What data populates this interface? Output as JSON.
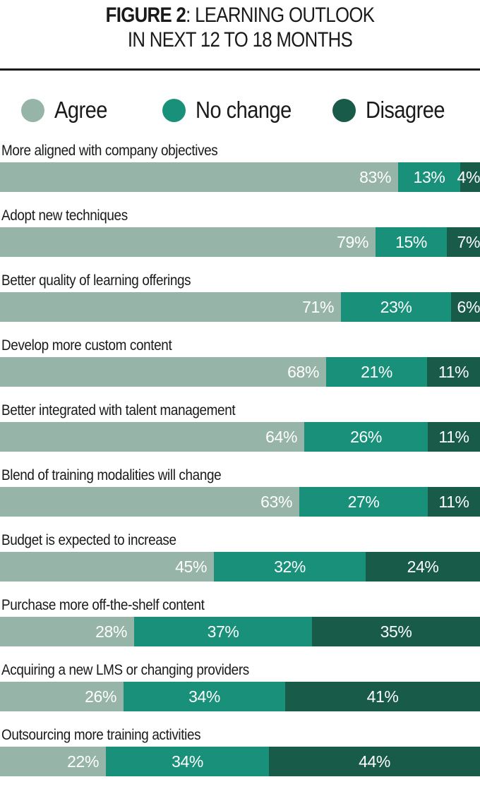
{
  "figure": {
    "title_bold": "FIGURE 2",
    "title_rest": ": LEARNING OUTLOOK",
    "title_line2": "IN NEXT 12 TO 18 MONTHS"
  },
  "legend": [
    {
      "label": "Agree",
      "color": "#97b4a9"
    },
    {
      "label": "No change",
      "color": "#18907a"
    },
    {
      "label": "Disagree",
      "color": "#175b48"
    }
  ],
  "chart_data": {
    "type": "bar",
    "orientation": "horizontal",
    "stacked": true,
    "title": "FIGURE 2: LEARNING OUTLOOK IN NEXT 12 TO 18 MONTHS",
    "legend_position": "top",
    "categories": [
      "More aligned with company objectives",
      "Adopt new techniques",
      "Better quality of learning offerings",
      "Develop more custom content",
      "Better integrated with talent management",
      "Blend of training modalities will change",
      "Budget is expected to increase",
      "Purchase more off-the-shelf content",
      "Acquiring a new LMS or changing providers",
      "Outsourcing more training activities"
    ],
    "series": [
      {
        "name": "Agree",
        "color": "#97b4a9",
        "values": [
          83,
          79,
          71,
          68,
          64,
          63,
          45,
          28,
          26,
          22
        ]
      },
      {
        "name": "No change",
        "color": "#18907a",
        "values": [
          13,
          15,
          23,
          21,
          26,
          27,
          32,
          37,
          34,
          34
        ]
      },
      {
        "name": "Disagree",
        "color": "#175b48",
        "values": [
          4,
          7,
          6,
          11,
          11,
          11,
          24,
          35,
          41,
          44
        ]
      }
    ],
    "value_suffix": "%"
  }
}
